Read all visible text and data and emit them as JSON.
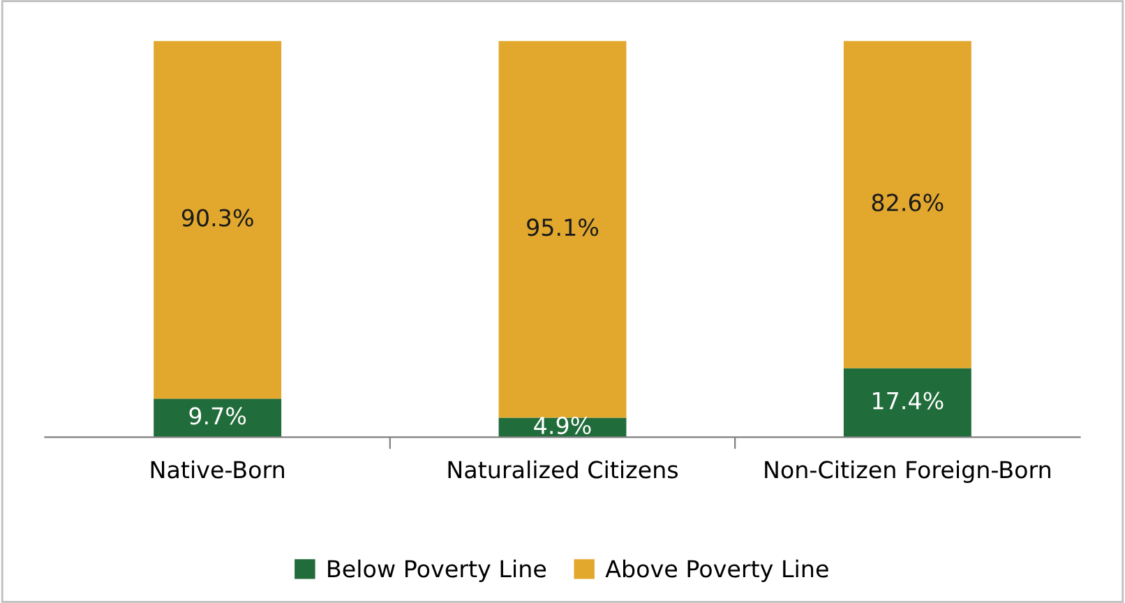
{
  "chart_data": {
    "type": "bar",
    "stacked": true,
    "categories": [
      "Native-Born",
      "Naturalized Citizens",
      "Non-Citizen Foreign-Born"
    ],
    "series": [
      {
        "name": "Below Poverty Line",
        "color": "#216c3b",
        "values": [
          9.7,
          4.9,
          17.4
        ],
        "value_labels": [
          "9.7%",
          "4.9%",
          "17.4%"
        ]
      },
      {
        "name": "Above Poverty Line",
        "color": "#e2a82e",
        "values": [
          90.3,
          95.1,
          82.6
        ],
        "value_labels": [
          "90.3%",
          "95.1%",
          "82.6%"
        ]
      }
    ],
    "legend": "bottom",
    "grid": false,
    "tick_labels": "x"
  }
}
